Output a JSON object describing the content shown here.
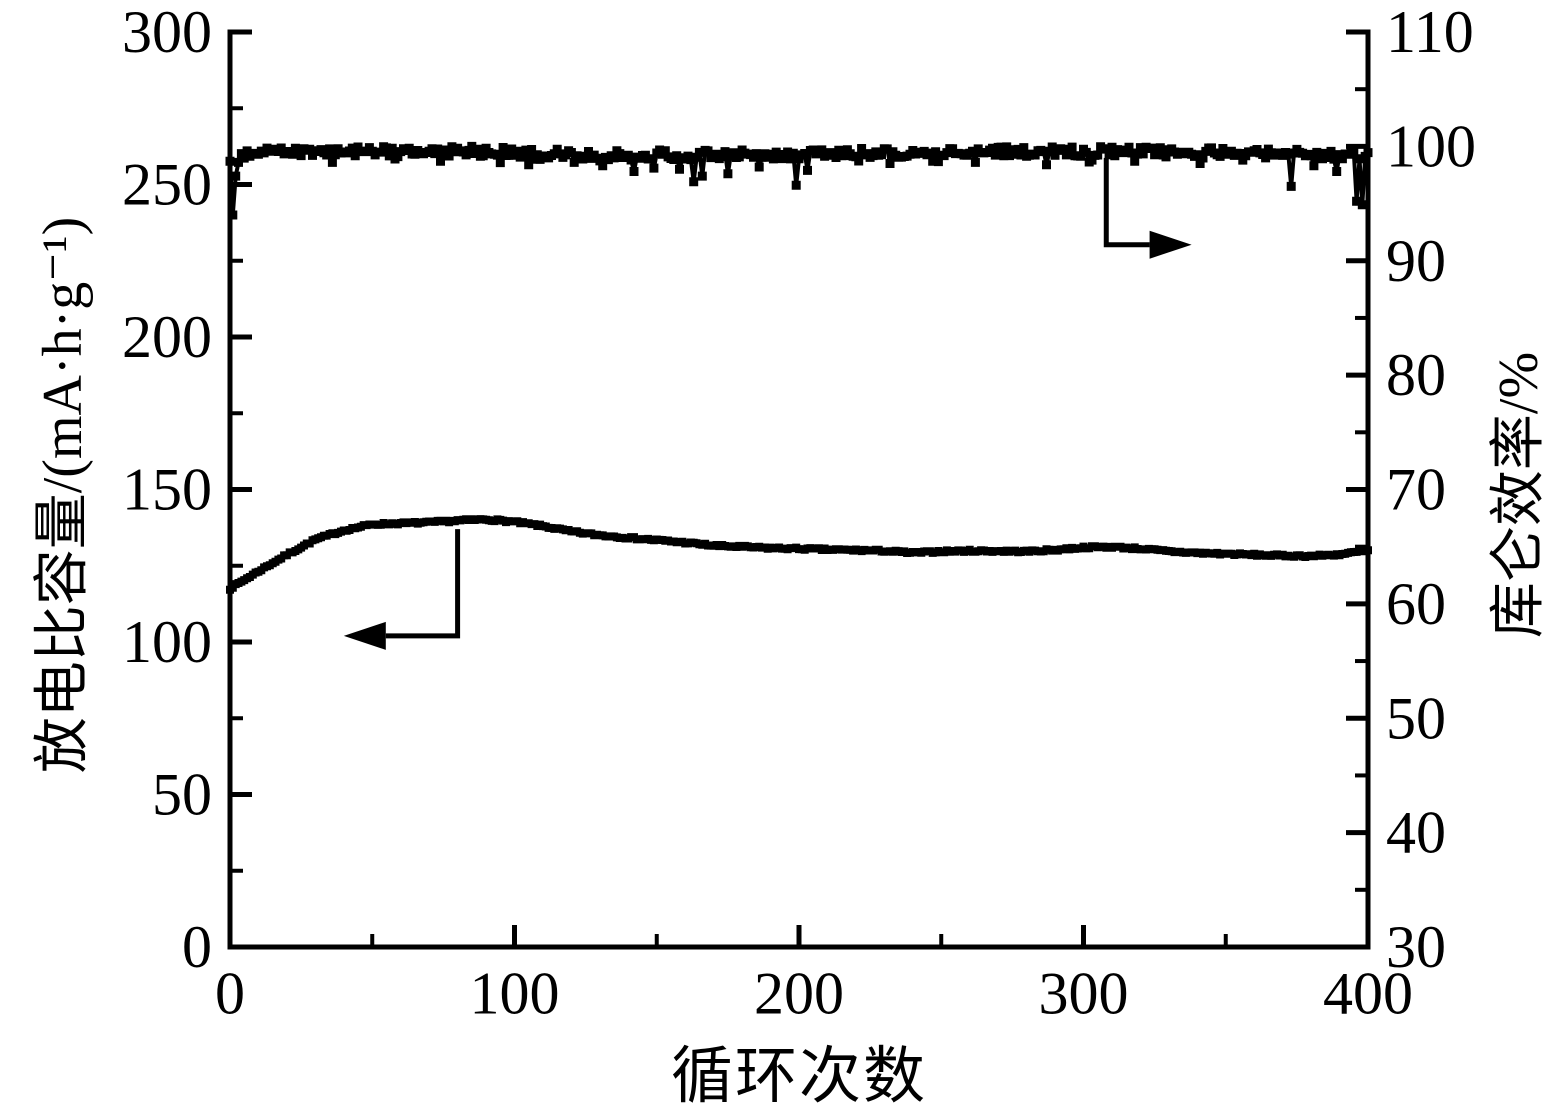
{
  "figure": {
    "background": "#ffffff",
    "ink_color": "#000000",
    "description": "Battery cycling performance plot: discharge specific capacity and Coulombic efficiency versus cycle number"
  },
  "chart_data": {
    "type": "line",
    "title": "",
    "grid": false,
    "legend": null,
    "x_axis": {
      "label": "循环次数",
      "min": 0,
      "max": 400,
      "major_ticks": [
        0,
        100,
        200,
        300,
        400
      ],
      "minor_step": 50
    },
    "y_left": {
      "label": "放电比容量/(mA·h·g⁻¹)",
      "min": 0,
      "max": 300,
      "major_ticks": [
        0,
        50,
        100,
        150,
        200,
        250,
        300
      ],
      "minor_step": 25
    },
    "y_right": {
      "label": "库仑效率/%",
      "min": 30,
      "max": 110,
      "major_ticks": [
        30,
        40,
        50,
        60,
        70,
        80,
        90,
        100,
        110
      ],
      "minor_step": 5
    },
    "series": [
      {
        "name": "discharge-capacity",
        "axis": "left",
        "color": "#000000",
        "marker": "square",
        "marker_size": 8,
        "line_width": 4,
        "jitter": 0.35,
        "dip_chance": 0.0,
        "anchors_x": [
          0,
          10,
          20,
          30,
          40,
          50,
          60,
          70,
          80,
          90,
          100,
          110,
          120,
          130,
          140,
          150,
          160,
          170,
          180,
          190,
          200,
          210,
          220,
          230,
          240,
          250,
          260,
          270,
          280,
          290,
          300,
          310,
          320,
          330,
          340,
          350,
          360,
          370,
          380,
          390,
          400
        ],
        "anchors_y": [
          117.5,
          123.2,
          128.6,
          133.6,
          136.6,
          138.6,
          138.9,
          139.2,
          139.8,
          140.2,
          139.4,
          138.0,
          136.2,
          135.0,
          134.2,
          133.4,
          132.6,
          131.6,
          131.2,
          130.8,
          130.6,
          130.3,
          130.1,
          129.9,
          129.2,
          129.7,
          129.9,
          129.8,
          129.7,
          130.2,
          131.0,
          131.2,
          130.6,
          129.7,
          129.2,
          128.9,
          128.6,
          128.3,
          128.2,
          128.7,
          130.0
        ],
        "outliers": []
      },
      {
        "name": "coulombic-efficiency",
        "axis": "right",
        "color": "#000000",
        "marker": "square",
        "marker_size": 9,
        "line_width": 4,
        "jitter": 0.42,
        "dip_chance": 0.06,
        "anchors_x": [
          0,
          10,
          20,
          30,
          40,
          50,
          60,
          70,
          80,
          90,
          100,
          110,
          120,
          130,
          140,
          150,
          160,
          170,
          180,
          190,
          200,
          210,
          220,
          230,
          240,
          250,
          260,
          270,
          280,
          290,
          300,
          310,
          320,
          330,
          340,
          350,
          360,
          370,
          380,
          390,
          400
        ],
        "anchors_y": [
          99.0,
          99.4,
          99.5,
          99.5,
          99.6,
          99.6,
          99.5,
          99.5,
          99.6,
          99.6,
          99.5,
          99.4,
          99.3,
          99.2,
          99.2,
          99.3,
          99.2,
          99.3,
          99.4,
          99.3,
          99.3,
          99.4,
          99.5,
          99.4,
          99.5,
          99.6,
          99.5,
          99.6,
          99.6,
          99.6,
          99.5,
          99.6,
          99.5,
          99.5,
          99.5,
          99.4,
          99.4,
          99.4,
          99.3,
          99.3,
          99.1
        ],
        "outliers": [
          {
            "x": 1,
            "y": 94.0
          },
          {
            "x": 2,
            "y": 97.4
          },
          {
            "x": 3,
            "y": 98.6
          },
          {
            "x": 36,
            "y": 98.6
          },
          {
            "x": 58,
            "y": 98.9
          },
          {
            "x": 74,
            "y": 98.7
          },
          {
            "x": 105,
            "y": 98.4
          },
          {
            "x": 121,
            "y": 98.6
          },
          {
            "x": 131,
            "y": 98.3
          },
          {
            "x": 142,
            "y": 97.8
          },
          {
            "x": 149,
            "y": 98.1
          },
          {
            "x": 158,
            "y": 98.0
          },
          {
            "x": 163,
            "y": 96.9
          },
          {
            "x": 166,
            "y": 97.4
          },
          {
            "x": 175,
            "y": 97.6
          },
          {
            "x": 186,
            "y": 98.2
          },
          {
            "x": 199,
            "y": 96.6
          },
          {
            "x": 203,
            "y": 97.9
          },
          {
            "x": 232,
            "y": 98.5
          },
          {
            "x": 247,
            "y": 98.7
          },
          {
            "x": 262,
            "y": 98.6
          },
          {
            "x": 287,
            "y": 98.4
          },
          {
            "x": 303,
            "y": 98.8
          },
          {
            "x": 318,
            "y": 98.7
          },
          {
            "x": 341,
            "y": 98.5
          },
          {
            "x": 356,
            "y": 98.8
          },
          {
            "x": 373,
            "y": 96.5
          },
          {
            "x": 381,
            "y": 98.3
          },
          {
            "x": 389,
            "y": 97.8
          },
          {
            "x": 396,
            "y": 95.2
          },
          {
            "x": 398,
            "y": 94.9
          }
        ]
      }
    ],
    "annotations": [
      {
        "name": "capacity-axis-arrow",
        "axis": "left",
        "points_x": [
          80,
          80,
          40
        ],
        "points_y": [
          137.0,
          102.0,
          102.0
        ]
      },
      {
        "name": "efficiency-axis-arrow",
        "axis": "right",
        "points_x": [
          308,
          308,
          338
        ],
        "points_y": [
          99.0,
          91.4,
          91.4
        ]
      }
    ]
  }
}
